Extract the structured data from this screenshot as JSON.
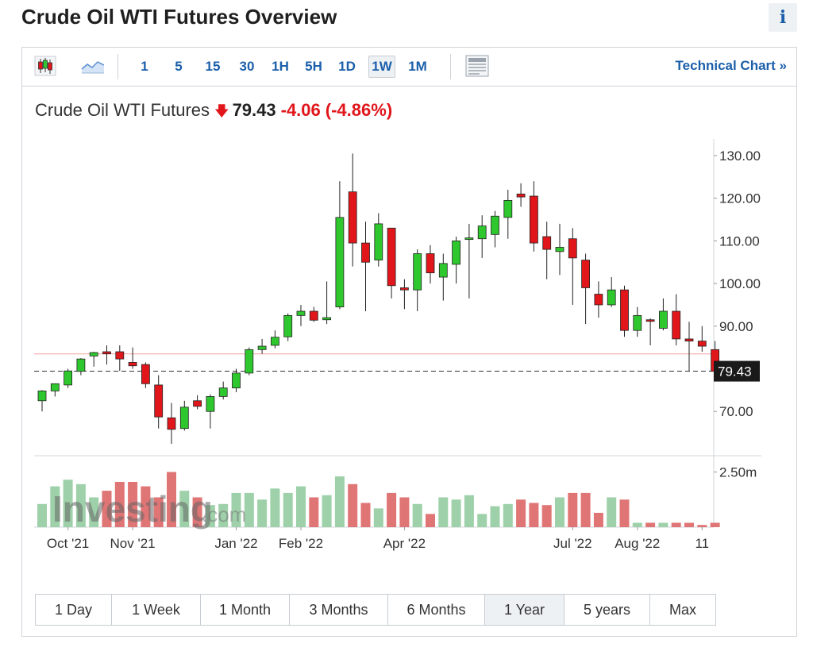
{
  "header": {
    "title": "Crude Oil WTI Futures Overview",
    "info_label": "i"
  },
  "toolbar": {
    "timeframes": [
      "1",
      "5",
      "15",
      "30",
      "1H",
      "5H",
      "1D",
      "1W",
      "1M"
    ],
    "active_timeframe": "1W",
    "tech_link": "Technical Chart »",
    "icons": [
      "candlestick-icon",
      "area-chart-icon",
      "layout-icon"
    ]
  },
  "quote": {
    "name": "Crude Oil WTI Futures",
    "direction": "down",
    "price": "79.43",
    "change": "-4.06",
    "change_pct": "(-4.86%)",
    "up_color": "#2ec82e",
    "down_color": "#e0161b"
  },
  "ranges": {
    "items": [
      "1 Day",
      "1 Week",
      "1 Month",
      "3 Months",
      "6 Months",
      "1 Year",
      "5 years",
      "Max"
    ],
    "active": "1 Year"
  },
  "chart_data": {
    "type": "candlestick",
    "y_ticks": [
      "130.00",
      "120.00",
      "110.00",
      "100.00",
      "90.00",
      "70.00"
    ],
    "ylim": [
      60,
      133
    ],
    "last_price_label": "79.43",
    "last_price": 79.43,
    "previous_close": 83.49,
    "volume_tick": "2.50m",
    "volume_max": 3.2,
    "x_labels": [
      {
        "label": "Oct '21",
        "index": 2
      },
      {
        "label": "Nov '21",
        "index": 7
      },
      {
        "label": "Jan '22",
        "index": 15
      },
      {
        "label": "Feb '22",
        "index": 20
      },
      {
        "label": "Apr '22",
        "index": 28
      },
      {
        "label": "Jul '22",
        "index": 41
      },
      {
        "label": "Aug '22",
        "index": 46
      },
      {
        "label": "11",
        "index": 51
      }
    ],
    "candles": [
      {
        "o": 72.5,
        "h": 75.0,
        "l": 70.0,
        "c": 74.8,
        "v": 1.05
      },
      {
        "o": 74.8,
        "h": 76.5,
        "l": 73.5,
        "c": 76.5,
        "v": 1.85
      },
      {
        "o": 76.2,
        "h": 80.0,
        "l": 75.5,
        "c": 79.5,
        "v": 2.15
      },
      {
        "o": 79.4,
        "h": 82.5,
        "l": 78.5,
        "c": 82.3,
        "v": 1.95
      },
      {
        "o": 83.0,
        "h": 84.0,
        "l": 80.5,
        "c": 83.8,
        "v": 1.35
      },
      {
        "o": 84.0,
        "h": 85.5,
        "l": 81.0,
        "c": 83.5,
        "v": 1.65
      },
      {
        "o": 84.0,
        "h": 85.5,
        "l": 79.5,
        "c": 82.3,
        "v": 2.05
      },
      {
        "o": 81.5,
        "h": 85.0,
        "l": 80.0,
        "c": 80.7,
        "v": 2.05
      },
      {
        "o": 81.0,
        "h": 81.5,
        "l": 75.5,
        "c": 76.5,
        "v": 1.85
      },
      {
        "o": 76.2,
        "h": 78.5,
        "l": 66.0,
        "c": 68.7,
        "v": 1.35
      },
      {
        "o": 68.5,
        "h": 72.0,
        "l": 62.4,
        "c": 65.8,
        "v": 2.5
      },
      {
        "o": 66.0,
        "h": 72.5,
        "l": 65.5,
        "c": 71.0,
        "v": 1.65
      },
      {
        "o": 72.5,
        "h": 73.8,
        "l": 70.5,
        "c": 71.2,
        "v": 1.35
      },
      {
        "o": 70.0,
        "h": 74.0,
        "l": 66.0,
        "c": 73.5,
        "v": 1.0
      },
      {
        "o": 73.5,
        "h": 77.0,
        "l": 72.8,
        "c": 75.5,
        "v": 1.05
      },
      {
        "o": 75.5,
        "h": 80.0,
        "l": 74.5,
        "c": 79.0,
        "v": 1.55
      },
      {
        "o": 79.0,
        "h": 85.0,
        "l": 78.5,
        "c": 84.5,
        "v": 1.55
      },
      {
        "o": 84.5,
        "h": 87.0,
        "l": 83.5,
        "c": 85.3,
        "v": 1.25
      },
      {
        "o": 85.5,
        "h": 89.0,
        "l": 84.8,
        "c": 87.4,
        "v": 1.75
      },
      {
        "o": 87.5,
        "h": 93.0,
        "l": 86.5,
        "c": 92.5,
        "v": 1.55
      },
      {
        "o": 92.5,
        "h": 95.0,
        "l": 90.0,
        "c": 93.5,
        "v": 1.85
      },
      {
        "o": 93.5,
        "h": 94.5,
        "l": 91.0,
        "c": 91.4,
        "v": 1.35
      },
      {
        "o": 91.5,
        "h": 100.5,
        "l": 90.5,
        "c": 92.0,
        "v": 1.45
      },
      {
        "o": 94.5,
        "h": 124.0,
        "l": 94.0,
        "c": 115.5,
        "v": 2.3
      },
      {
        "o": 121.5,
        "h": 130.5,
        "l": 104.0,
        "c": 109.5,
        "v": 1.95
      },
      {
        "o": 109.5,
        "h": 114.5,
        "l": 93.5,
        "c": 105.0,
        "v": 1.1
      },
      {
        "o": 105.5,
        "h": 116.5,
        "l": 104.0,
        "c": 114.0,
        "v": 0.85
      },
      {
        "o": 113.0,
        "h": 113.0,
        "l": 96.5,
        "c": 99.5,
        "v": 1.55
      },
      {
        "o": 99.0,
        "h": 101.0,
        "l": 94.0,
        "c": 98.5,
        "v": 1.35
      },
      {
        "o": 98.5,
        "h": 108.0,
        "l": 93.5,
        "c": 107.0,
        "v": 1.05
      },
      {
        "o": 107.0,
        "h": 109.0,
        "l": 100.0,
        "c": 102.5,
        "v": 0.6
      },
      {
        "o": 101.5,
        "h": 107.0,
        "l": 96.0,
        "c": 104.7,
        "v": 1.35
      },
      {
        "o": 104.5,
        "h": 111.0,
        "l": 100.0,
        "c": 110.0,
        "v": 1.25
      },
      {
        "o": 110.5,
        "h": 114.0,
        "l": 96.5,
        "c": 110.7,
        "v": 1.45
      },
      {
        "o": 110.5,
        "h": 116.0,
        "l": 106.0,
        "c": 113.5,
        "v": 0.6
      },
      {
        "o": 111.5,
        "h": 117.0,
        "l": 108.5,
        "c": 115.8,
        "v": 0.95
      },
      {
        "o": 115.5,
        "h": 122.0,
        "l": 110.5,
        "c": 119.5,
        "v": 1.05
      },
      {
        "o": 121.0,
        "h": 123.5,
        "l": 118.0,
        "c": 120.3,
        "v": 1.25
      },
      {
        "o": 120.5,
        "h": 124.0,
        "l": 107.5,
        "c": 109.5,
        "v": 1.1
      },
      {
        "o": 111.0,
        "h": 114.5,
        "l": 101.0,
        "c": 108.0,
        "v": 1.0
      },
      {
        "o": 107.5,
        "h": 114.0,
        "l": 102.0,
        "c": 108.5,
        "v": 1.35
      },
      {
        "o": 110.5,
        "h": 113.0,
        "l": 95.0,
        "c": 106.0,
        "v": 1.55
      },
      {
        "o": 105.5,
        "h": 107.0,
        "l": 90.5,
        "c": 99.0,
        "v": 1.55
      },
      {
        "o": 97.5,
        "h": 100.5,
        "l": 92.0,
        "c": 95.0,
        "v": 0.65
      },
      {
        "o": 95.0,
        "h": 101.5,
        "l": 94.5,
        "c": 98.5,
        "v": 1.35
      },
      {
        "o": 98.5,
        "h": 99.5,
        "l": 87.5,
        "c": 89.0,
        "v": 1.25
      },
      {
        "o": 89.0,
        "h": 94.5,
        "l": 87.5,
        "c": 92.5,
        "v": 0.2
      },
      {
        "o": 91.5,
        "h": 91.8,
        "l": 85.5,
        "c": 91.2,
        "v": 0.2
      },
      {
        "o": 89.5,
        "h": 96.5,
        "l": 89.0,
        "c": 93.5,
        "v": 0.2
      },
      {
        "o": 93.5,
        "h": 97.5,
        "l": 85.5,
        "c": 87.0,
        "v": 0.2
      },
      {
        "o": 87.0,
        "h": 91.0,
        "l": 79.5,
        "c": 86.5,
        "v": 0.2
      },
      {
        "o": 86.5,
        "h": 90.0,
        "l": 84.0,
        "c": 85.3,
        "v": 0.1
      },
      {
        "o": 84.5,
        "h": 86.5,
        "l": 78.5,
        "c": 79.4,
        "v": 0.2
      }
    ]
  }
}
